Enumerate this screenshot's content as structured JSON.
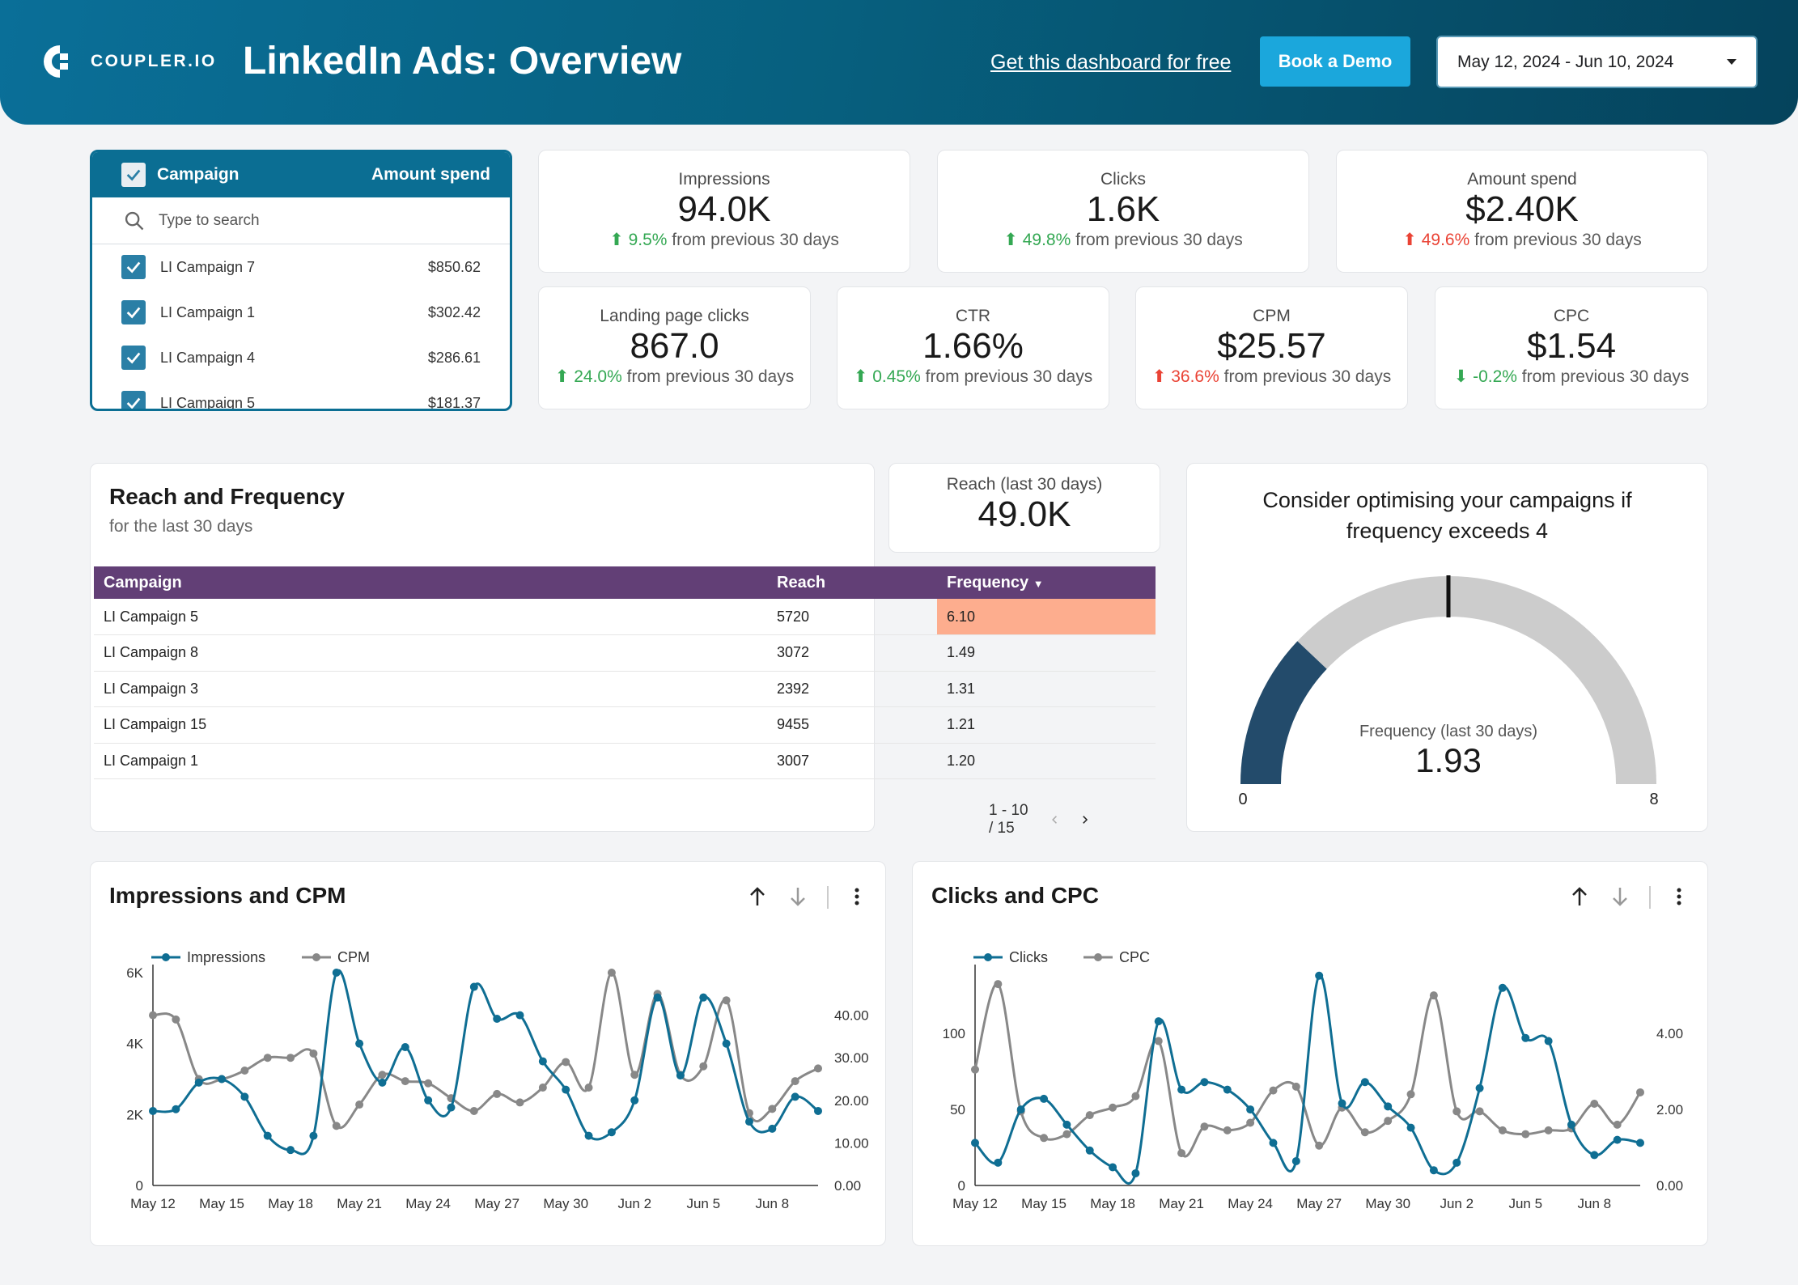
{
  "header": {
    "brand": "COUPLER.IO",
    "title": "LinkedIn Ads: Overview",
    "get_link": "Get this dashboard for free",
    "demo_button": "Book a Demo",
    "date_range": "May 12, 2024 - Jun 10, 2024"
  },
  "filter": {
    "col_campaign": "Campaign",
    "col_amount": "Amount spend",
    "search_placeholder": "Type to search",
    "items": [
      {
        "name": "LI Campaign 7",
        "amount": "$850.62"
      },
      {
        "name": "LI Campaign 1",
        "amount": "$302.42"
      },
      {
        "name": "LI Campaign 4",
        "amount": "$286.61"
      },
      {
        "name": "LI Campaign 5",
        "amount": "$181.37"
      }
    ]
  },
  "kpis": {
    "impressions": {
      "label": "Impressions",
      "value": "94.0K",
      "delta": "9.5%",
      "suffix": " from previous 30 days"
    },
    "clicks": {
      "label": "Clicks",
      "value": "1.6K",
      "delta": "49.8%",
      "suffix": " from previous 30 days"
    },
    "spend": {
      "label": "Amount spend",
      "value": "$2.40K",
      "delta": "49.6%",
      "suffix": " from previous 30 days"
    },
    "lpc": {
      "label": "Landing page clicks",
      "value": "867.0",
      "delta": "24.0%",
      "suffix": " from previous 30 days"
    },
    "ctr": {
      "label": "CTR",
      "value": "1.66%",
      "delta": "0.45%",
      "suffix": " from previous 30 days"
    },
    "cpm": {
      "label": "CPM",
      "value": "$25.57",
      "delta": "36.6%",
      "suffix": " from previous 30 days"
    },
    "cpc": {
      "label": "CPC",
      "value": "$1.54",
      "delta": "-0.2%",
      "suffix": " from previous 30 days"
    }
  },
  "reach_freq": {
    "title": "Reach and Frequency",
    "subtitle": "for the last 30 days",
    "headers": {
      "campaign": "Campaign",
      "reach": "Reach",
      "frequency": "Frequency"
    },
    "rows": [
      {
        "campaign": "LI Campaign 5",
        "reach": "5720",
        "frequency": "6.10"
      },
      {
        "campaign": "LI Campaign 8",
        "reach": "3072",
        "frequency": "1.49"
      },
      {
        "campaign": "LI Campaign 3",
        "reach": "2392",
        "frequency": "1.31"
      },
      {
        "campaign": "LI Campaign 15",
        "reach": "9455",
        "frequency": "1.21"
      },
      {
        "campaign": "LI Campaign 1",
        "reach": "3007",
        "frequency": "1.20"
      }
    ],
    "pagination": "1 - 10 / 15"
  },
  "reach_kpi": {
    "label": "Reach (last 30 days)",
    "value": "49.0K"
  },
  "gauge": {
    "title_line1": "Consider optimising your campaigns if",
    "title_line2": "frequency exceeds 4",
    "label": "Frequency (last 30 days)",
    "value_text": "1.93",
    "value": 1.93,
    "min": 0,
    "max": 8,
    "target": 4,
    "min_label": "0",
    "max_label": "8",
    "colors": {
      "fill": "#234b6b",
      "track": "#cccccc"
    }
  },
  "colors": {
    "primary": "#0f6e93",
    "secondary": "#888888"
  },
  "chart_data": [
    {
      "type": "line",
      "title": "Impressions and CPM",
      "x": [
        "May 12",
        "May 13",
        "May 14",
        "May 15",
        "May 16",
        "May 17",
        "May 18",
        "May 19",
        "May 20",
        "May 21",
        "May 22",
        "May 23",
        "May 24",
        "May 25",
        "May 26",
        "May 27",
        "May 28",
        "May 29",
        "May 30",
        "May 31",
        "Jun 1",
        "Jun 2",
        "Jun 3",
        "Jun 4",
        "Jun 5",
        "Jun 6",
        "Jun 7",
        "Jun 8",
        "Jun 9",
        "Jun 10"
      ],
      "x_tick_labels": [
        "May 12",
        "May 15",
        "May 18",
        "May 21",
        "May 24",
        "May 27",
        "May 30",
        "Jun 2",
        "Jun 5",
        "Jun 8"
      ],
      "series": [
        {
          "name": "Impressions",
          "axis": "left",
          "values": [
            2100,
            2150,
            2900,
            3000,
            2500,
            1400,
            1000,
            1400,
            6000,
            4000,
            2900,
            3900,
            2400,
            2200,
            5600,
            4700,
            4800,
            3500,
            2700,
            1400,
            1500,
            2400,
            5300,
            3100,
            5300,
            4000,
            1800,
            1600,
            2500,
            2100
          ]
        },
        {
          "name": "CPM",
          "axis": "right",
          "values": [
            40.0,
            39.0,
            25.0,
            25.0,
            27.0,
            30.0,
            30.0,
            31.0,
            14.0,
            19.0,
            26.0,
            24.5,
            24.0,
            20.5,
            17.5,
            21.5,
            19.5,
            23.0,
            29.0,
            23.0,
            50.0,
            26.0,
            45.0,
            26.0,
            28.0,
            43.5,
            17.0,
            18.0,
            24.5,
            27.5
          ]
        }
      ],
      "y_left": {
        "ticks": [
          "0",
          "2K",
          "4K",
          "6K"
        ],
        "lim": [
          0,
          6000
        ]
      },
      "y_right": {
        "ticks": [
          "0.00",
          "10.00",
          "20.00",
          "30.00",
          "40.00"
        ],
        "lim": [
          0,
          50
        ]
      }
    },
    {
      "type": "line",
      "title": "Clicks and CPC",
      "x": [
        "May 12",
        "May 13",
        "May 14",
        "May 15",
        "May 16",
        "May 17",
        "May 18",
        "May 19",
        "May 20",
        "May 21",
        "May 22",
        "May 23",
        "May 24",
        "May 25",
        "May 26",
        "May 27",
        "May 28",
        "May 29",
        "May 30",
        "May 31",
        "Jun 1",
        "Jun 2",
        "Jun 3",
        "Jun 4",
        "Jun 5",
        "Jun 6",
        "Jun 7",
        "Jun 8",
        "Jun 9",
        "Jun 10"
      ],
      "x_tick_labels": [
        "May 12",
        "May 15",
        "May 18",
        "May 21",
        "May 24",
        "May 27",
        "May 30",
        "Jun 2",
        "Jun 5",
        "Jun 8"
      ],
      "series": [
        {
          "name": "Clicks",
          "axis": "left",
          "values": [
            28,
            15,
            50,
            57,
            40,
            23,
            12,
            8,
            108,
            63,
            68,
            63,
            50,
            28,
            16,
            138,
            54,
            68,
            52,
            38,
            10,
            15,
            64,
            130,
            97,
            95,
            40,
            20,
            30,
            28
          ]
        },
        {
          "name": "CPC",
          "axis": "right",
          "values": [
            3.05,
            5.3,
            1.95,
            1.25,
            1.35,
            1.85,
            2.05,
            2.35,
            3.8,
            0.85,
            1.55,
            1.45,
            1.65,
            2.5,
            2.6,
            1.05,
            2.05,
            1.4,
            1.7,
            2.4,
            5.0,
            1.95,
            1.95,
            1.45,
            1.35,
            1.45,
            1.5,
            2.15,
            1.6,
            2.45
          ]
        }
      ],
      "y_left": {
        "ticks": [
          "0",
          "50",
          "100"
        ],
        "lim": [
          0,
          140
        ]
      },
      "y_right": {
        "ticks": [
          "0.00",
          "2.00",
          "4.00"
        ],
        "lim": [
          0,
          5.6
        ]
      }
    }
  ]
}
